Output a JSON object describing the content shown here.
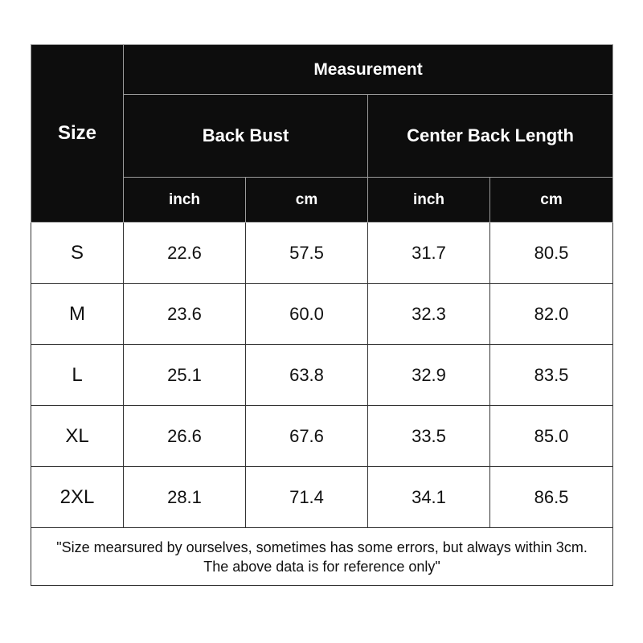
{
  "header": {
    "size": "Size",
    "measurement": "Measurement",
    "groups": [
      "Back Bust",
      "Center Back Length"
    ],
    "units": [
      "inch",
      "cm",
      "inch",
      "cm"
    ]
  },
  "rows": [
    {
      "size": "S",
      "values": [
        "22.6",
        "57.5",
        "31.7",
        "80.5"
      ]
    },
    {
      "size": "M",
      "values": [
        "23.6",
        "60.0",
        "32.3",
        "82.0"
      ]
    },
    {
      "size": "L",
      "values": [
        "25.1",
        "63.8",
        "32.9",
        "83.5"
      ]
    },
    {
      "size": "XL",
      "values": [
        "26.6",
        "67.6",
        "33.5",
        "85.0"
      ]
    },
    {
      "size": "2XL",
      "values": [
        "28.1",
        "71.4",
        "34.1",
        "86.5"
      ]
    }
  ],
  "note": {
    "line1": "\"Size mearsured by ourselves, sometimes has some errors, but always within 3cm.",
    "line2": "The above data is for reference only\""
  }
}
